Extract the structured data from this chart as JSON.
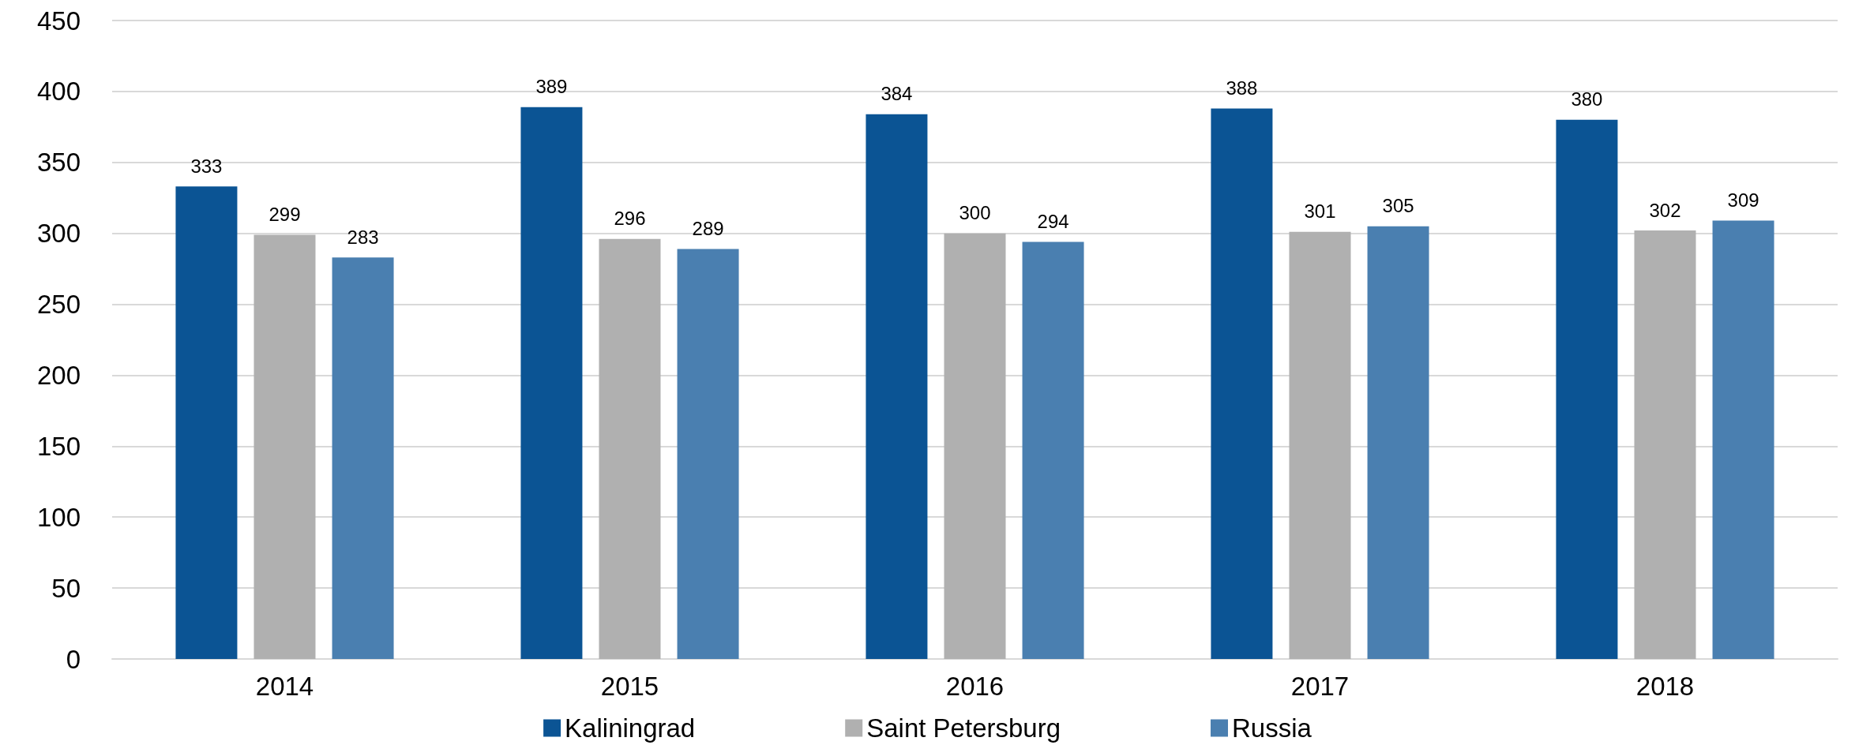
{
  "chart_data": {
    "type": "bar",
    "categories": [
      "2014",
      "2015",
      "2016",
      "2017",
      "2018"
    ],
    "series": [
      {
        "name": "Kaliningrad",
        "color": "#0b5494",
        "values": [
          333,
          389,
          384,
          388,
          380
        ]
      },
      {
        "name": "Saint Petersburg",
        "color": "#b0b0b0",
        "values": [
          299,
          296,
          300,
          301,
          302
        ]
      },
      {
        "name": "Russia",
        "color": "#4a7fb0",
        "values": [
          283,
          289,
          294,
          305,
          309
        ]
      }
    ],
    "ylim": [
      0,
      450
    ],
    "yticks": [
      0,
      50,
      100,
      150,
      200,
      250,
      300,
      350,
      400,
      450
    ],
    "grid": "y",
    "legend": "bottom",
    "data_labels": true
  }
}
